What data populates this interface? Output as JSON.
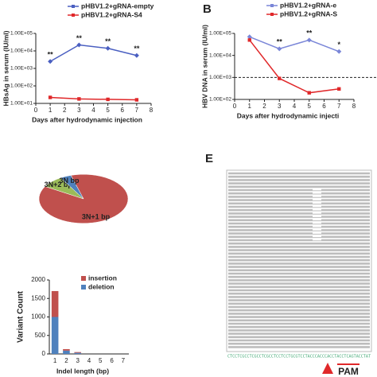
{
  "chart_data": [
    {
      "type": "line",
      "log_y": true,
      "y_label": "HBsAg in serum (IU/ml)",
      "x_label": "Days after hydrodynamic injection",
      "x": [
        1,
        3,
        5,
        7
      ],
      "series": [
        {
          "name": "pHBV1.2+gRNA-empty",
          "color": "#4a5fc1",
          "marker": "diamond",
          "values": [
            2500,
            22000,
            14000,
            5500
          ]
        },
        {
          "name": "pHBV1.2+gRNA-S4",
          "color": "#e0282a",
          "marker": "square",
          "values": [
            22,
            18,
            17,
            16
          ]
        }
      ],
      "annotations": [
        {
          "x": 1,
          "text": "**"
        },
        {
          "x": 3,
          "text": "**"
        },
        {
          "x": 5,
          "text": "**"
        },
        {
          "x": 7,
          "text": "**"
        }
      ],
      "xlim": [
        0,
        8
      ],
      "xticks": [
        0,
        1,
        2,
        3,
        4,
        5,
        6,
        7,
        8
      ],
      "ylim": [
        10,
        100000
      ],
      "yticks": [
        {
          "value": 10,
          "label": "1.00E+01"
        },
        {
          "value": 100,
          "label": "1.00E+02"
        },
        {
          "value": 1000,
          "label": "1.00E+03"
        },
        {
          "value": 10000,
          "label": "1.00E+04"
        },
        {
          "value": 100000,
          "label": "1.00E+05"
        }
      ]
    },
    {
      "type": "line",
      "log_y": true,
      "panel_label": "B",
      "y_label": "HBV DNA in serum (IU/ml)",
      "x_label": "Days after hydrodynamic injecti",
      "x": [
        1,
        3,
        5,
        7
      ],
      "series": [
        {
          "name": "pHBV1.2+gRNA-e",
          "color": "#7a86d8",
          "marker": "diamond",
          "values": [
            70000,
            20000,
            50000,
            15000
          ]
        },
        {
          "name": "pHBV1.2+gRNA-S",
          "color": "#e0282a",
          "marker": "square",
          "values": [
            50000,
            900,
            200,
            300
          ]
        }
      ],
      "annotations": [
        {
          "x": 3,
          "text": "**"
        },
        {
          "x": 5,
          "text": "**"
        },
        {
          "x": 7,
          "text": "*"
        }
      ],
      "reference_line": 1000,
      "xlim": [
        0,
        8
      ],
      "xticks": [
        0,
        1,
        2,
        3,
        4,
        5,
        6,
        7,
        8
      ],
      "ylim": [
        100,
        100000
      ],
      "yticks": [
        {
          "value": 100,
          "label": "1.00E+02"
        },
        {
          "value": 1000,
          "label": "1.00E+03"
        },
        {
          "value": 10000,
          "label": "1.00E+04"
        },
        {
          "value": 100000,
          "label": "1.00E+05"
        }
      ]
    },
    {
      "type": "pie",
      "categories": [
        "3N+1 bp",
        "3N+2 bp",
        "3N bp"
      ],
      "values": [
        88,
        8,
        4
      ],
      "colors": [
        "#c0504d",
        "#9bbb59",
        "#4f81bd"
      ]
    },
    {
      "type": "stacked_bar",
      "y_label": "Variant Count",
      "x_label": "Indel length (bp)",
      "categories": [
        "1",
        "2",
        "3",
        "4",
        "5",
        "6",
        "7"
      ],
      "series": [
        {
          "name": "deletion",
          "color": "#4f81bd",
          "values": [
            1000,
            90,
            30,
            0,
            0,
            0,
            0
          ]
        },
        {
          "name": "insertion",
          "color": "#c0504d",
          "values": [
            700,
            40,
            20,
            0,
            0,
            0,
            0
          ]
        }
      ],
      "ylim": [
        0,
        2000
      ],
      "yticks": [
        0,
        500,
        1000,
        1500,
        2000
      ]
    }
  ],
  "panel_e": {
    "label": "E",
    "pam": "PAM",
    "sequence": "CTCCTCGCCTCGCCTCGCCTCCTCCTGCGTCCTACCCACCCACCTACCTCAGTACCTAT"
  }
}
